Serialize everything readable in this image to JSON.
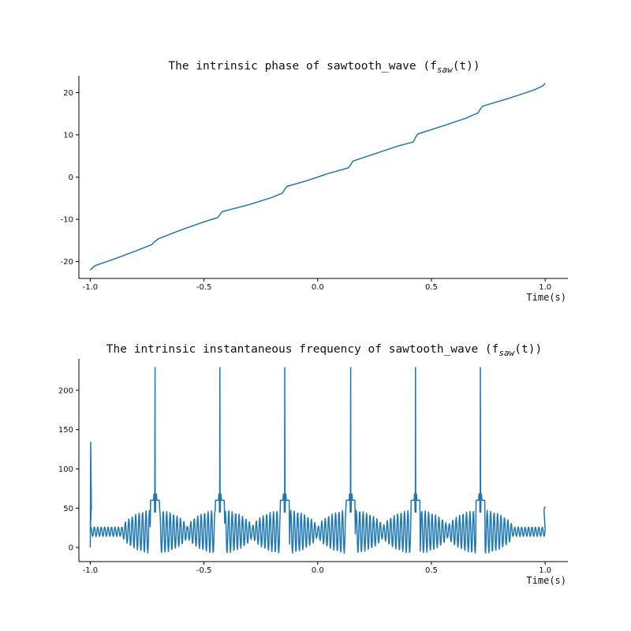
{
  "chart_data": [
    {
      "type": "line",
      "title": "The intrinsic phase of sawtooth_wave (f_saw(t))",
      "title_parts": {
        "pre": "The intrinsic phase of sawtooth_wave (f",
        "sub": "saw",
        "post": "(t))"
      },
      "xlabel": "Time(s)",
      "ylabel": "",
      "xlim": [
        -1.05,
        1.1
      ],
      "ylim": [
        -24,
        24
      ],
      "xticks": [
        -1.0,
        -0.5,
        0.0,
        0.5,
        1.0
      ],
      "xtick_labels": [
        "-1.0",
        "-0.5",
        "0.0",
        "0.5",
        "1.0"
      ],
      "yticks": [
        -20,
        -10,
        0,
        10,
        20
      ],
      "ytick_labels": [
        "-20",
        "-10",
        "0",
        "10",
        "20"
      ],
      "grid": false,
      "color": "#1f77b4",
      "series": [
        {
          "x": [
            -1.0,
            -0.98,
            -0.9,
            -0.8,
            -0.73,
            -0.715,
            -0.7,
            -0.6,
            -0.5,
            -0.44,
            -0.43,
            -0.42,
            -0.3,
            -0.2,
            -0.155,
            -0.145,
            -0.135,
            -0.05,
            0.0,
            0.05,
            0.135,
            0.145,
            0.155,
            0.25,
            0.35,
            0.42,
            0.43,
            0.44,
            0.55,
            0.65,
            0.705,
            0.715,
            0.725,
            0.85,
            0.95,
            0.99,
            1.0
          ],
          "y": [
            -22,
            -21,
            -19.5,
            -17.5,
            -16,
            -15.2,
            -14.6,
            -12.5,
            -10.6,
            -9.6,
            -8.9,
            -8.2,
            -6.5,
            -4.8,
            -3.8,
            -2.9,
            -2.2,
            -0.9,
            0,
            0.9,
            2.2,
            2.9,
            3.8,
            5.5,
            7.3,
            8.3,
            9.4,
            10.2,
            12.1,
            13.9,
            15.2,
            16.1,
            16.8,
            18.8,
            20.6,
            21.6,
            22.2
          ]
        }
      ]
    },
    {
      "type": "line",
      "title": "The intrinsic instantaneous frequency of sawtooth_wave (f_saw(t))",
      "title_parts": {
        "pre": "The intrinsic instantaneous frequency of sawtooth_wave (f",
        "sub": "saw",
        "post": "(t))"
      },
      "xlabel": "Time(s)",
      "ylabel": "",
      "xlim": [
        -1.05,
        1.1
      ],
      "ylim": [
        -18,
        240
      ],
      "xticks": [
        -1.0,
        -0.5,
        0.0,
        0.5,
        1.0
      ],
      "xtick_labels": [
        "-1.0",
        "-0.5",
        "0.0",
        "0.5",
        "1.0"
      ],
      "yticks": [
        0,
        50,
        100,
        150,
        200
      ],
      "ytick_labels": [
        "0",
        "50",
        "100",
        "150",
        "200"
      ],
      "grid": false,
      "color": "#1f77b4",
      "series": [
        {
          "baseline": 20,
          "spike_times": [
            -0.715,
            -0.43,
            -0.145,
            0.145,
            0.43,
            0.715
          ],
          "spike_peak": 229,
          "start_peak": 134,
          "end_value": 52,
          "oscillation_amplitude_max": 28
        }
      ]
    }
  ]
}
